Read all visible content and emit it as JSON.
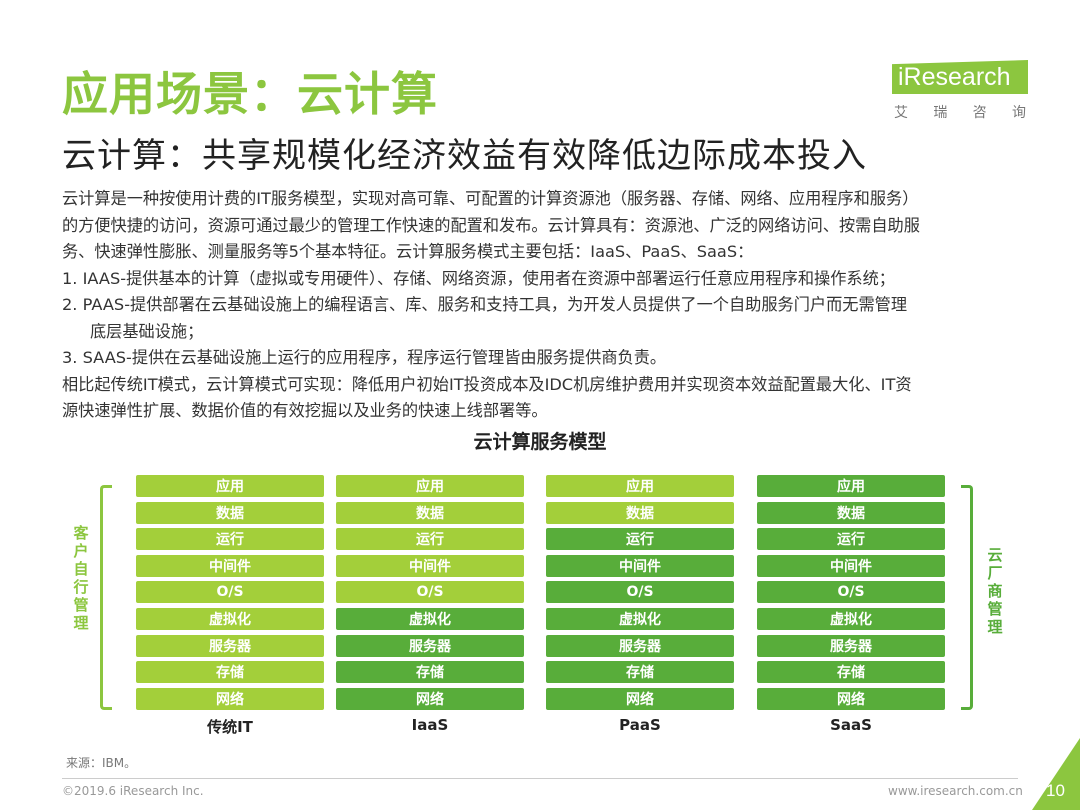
{
  "header": {
    "title": "应用场景：云计算",
    "subtitle": "云计算：共享规模化经济效益有效降低边际成本投入"
  },
  "logo": {
    "word": "iResearch",
    "chinese": [
      "艾",
      "瑞",
      "咨",
      "询"
    ]
  },
  "body": {
    "lines": [
      "云计算是一种按使用计费的IT服务模型，实现对高可靠、可配置的计算资源池（服务器、存储、网络、应用程序和服务）",
      "的方便快捷的访问，资源可通过最少的管理工作快速的配置和发布。云计算具有：资源池、广泛的网络访问、按需自助服",
      "务、快速弹性膨胀、测量服务等5个基本特征。云计算服务模式主要包括：IaaS、PaaS、SaaS：",
      "1.  IAAS-提供基本的计算（虚拟或专用硬件）、存储、网络资源，使用者在资源中部署运行任意应用程序和操作系统；",
      "2.  PAAS-提供部署在云基础设施上的编程语言、库、服务和支持工具，为开发人员提供了一个自助服务门户而无需管理",
      "底层基础设施；",
      "3.  SAAS-提供在云基础设施上运行的应用程序，程序运行管理皆由服务提供商负责。",
      "相比起传统IT模式，云计算模式可实现：降低用户初始IT投资成本及IDC机房维护费用并实现资本效益配置最大化、IT资",
      "源快速弹性扩展、数据价值的有效挖掘以及业务的快速上线部署等。"
    ]
  },
  "diagram": {
    "title": "云计算服务模型",
    "left_label": "客户自行管理",
    "right_label": "云厂商管理",
    "layers": [
      "应用",
      "数据",
      "运行",
      "中间件",
      "O/S",
      "虚拟化",
      "服务器",
      "存储",
      "网络"
    ],
    "columns": [
      {
        "label": "传统IT",
        "customer_managed": 9
      },
      {
        "label": "IaaS",
        "customer_managed": 5
      },
      {
        "label": "PaaS",
        "customer_managed": 2
      },
      {
        "label": "SaaS",
        "customer_managed": 0
      }
    ],
    "colors": {
      "customer": "#a3cf3a",
      "provider": "#58ad3a"
    }
  },
  "footer": {
    "source": "来源：IBM。",
    "copyright": "©2019.6 iResearch Inc.",
    "url": "www.iresearch.com.cn",
    "page": "10"
  }
}
